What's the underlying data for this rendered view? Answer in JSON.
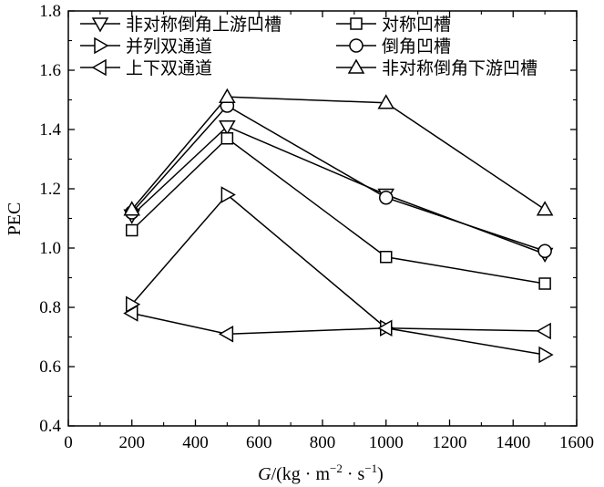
{
  "chart_data": {
    "type": "line",
    "title": "",
    "xlabel": "G/(kg·m⁻²·s⁻¹)",
    "xlabel_parts": {
      "var": "G",
      "unit_prefix": "/(kg · m",
      "exp1": "−2",
      "mid": " · s",
      "exp2": "−1",
      "unit_suffix": ")"
    },
    "ylabel": "PEC",
    "xlim": [
      0,
      1600
    ],
    "ylim": [
      0.4,
      1.8
    ],
    "xticks": [
      0,
      200,
      400,
      600,
      800,
      1000,
      1200,
      1400,
      1600
    ],
    "yticks": [
      0.4,
      0.6,
      0.8,
      1.0,
      1.2,
      1.4,
      1.6,
      1.8
    ],
    "xtick_labels": [
      "0",
      "200",
      "400",
      "600",
      "800",
      "1000",
      "1200",
      "1400",
      "1600"
    ],
    "ytick_labels": [
      "0.4",
      "0.6",
      "0.8",
      "1.0",
      "1.2",
      "1.4",
      "1.6",
      "1.8"
    ],
    "grid": false,
    "legend_position": "top",
    "x": [
      200,
      500,
      1000,
      1500
    ],
    "series": [
      {
        "name": "非对称倒角上游凹槽",
        "marker": "triangle-down",
        "values": [
          1.11,
          1.41,
          1.18,
          0.98
        ]
      },
      {
        "name": "对称凹槽",
        "marker": "square",
        "values": [
          1.06,
          1.37,
          0.97,
          0.88
        ]
      },
      {
        "name": "并列双通道",
        "marker": "triangle-right",
        "values": [
          0.81,
          1.18,
          0.73,
          0.64
        ]
      },
      {
        "name": "倒角凹槽",
        "marker": "circle",
        "values": [
          1.12,
          1.48,
          1.17,
          0.99
        ]
      },
      {
        "name": "上下双通道",
        "marker": "triangle-left",
        "values": [
          0.78,
          0.71,
          0.73,
          0.72
        ]
      },
      {
        "name": "非对称倒角下游凹槽",
        "marker": "triangle-up",
        "values": [
          1.13,
          1.51,
          1.49,
          1.13
        ]
      }
    ]
  }
}
